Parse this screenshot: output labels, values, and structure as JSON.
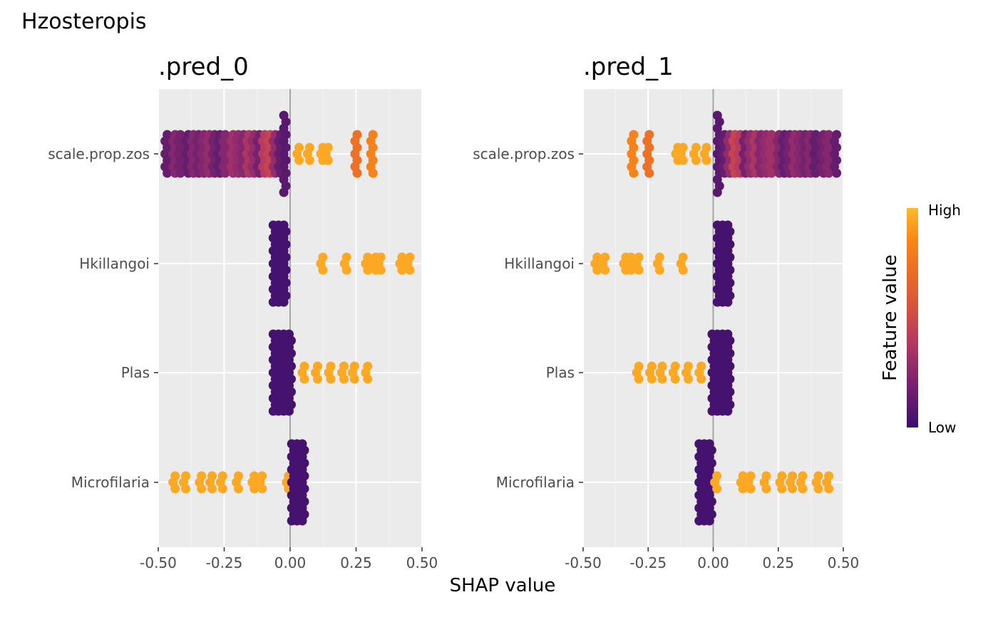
{
  "chart_data": {
    "type": "scatter",
    "subtype": "shap-beeswarm",
    "title": "Hzosteropis",
    "xlabel": "SHAP value",
    "xlim": [
      -0.5,
      0.5
    ],
    "x_ticks": [
      "-0.50",
      "-0.25",
      "0.00",
      "0.25",
      "0.50"
    ],
    "features": [
      "scale.prop.zos",
      "Hkillangoi",
      "Plas",
      "Microfilaria"
    ],
    "grid": true,
    "zero_line": true,
    "legend": {
      "title": "Feature value",
      "high_label": "High",
      "low_label": "Low",
      "position": "right",
      "colors": [
        "#fcb92b",
        "#f88517",
        "#e05a33",
        "#b83a5e",
        "#8e2a6e",
        "#5b1a6e",
        "#3b0f6f"
      ]
    },
    "panels": [
      {
        "title": ".pred_0",
        "features": [
          {
            "name": "scale.prop.zos",
            "points": [
              {
                "x": -0.47,
                "v": 0.2
              },
              {
                "x": -0.44,
                "v": 0.3
              },
              {
                "x": -0.42,
                "v": 0.25
              },
              {
                "x": -0.39,
                "v": 0.2
              },
              {
                "x": -0.37,
                "v": 0.3
              },
              {
                "x": -0.35,
                "v": 0.25
              },
              {
                "x": -0.33,
                "v": 0.3
              },
              {
                "x": -0.31,
                "v": 0.35
              },
              {
                "x": -0.29,
                "v": 0.25
              },
              {
                "x": -0.27,
                "v": 0.2
              },
              {
                "x": -0.25,
                "v": 0.3
              },
              {
                "x": -0.22,
                "v": 0.4
              },
              {
                "x": -0.2,
                "v": 0.35
              },
              {
                "x": -0.18,
                "v": 0.3
              },
              {
                "x": -0.16,
                "v": 0.45
              },
              {
                "x": -0.14,
                "v": 0.35
              },
              {
                "x": -0.12,
                "v": 0.25
              },
              {
                "x": -0.1,
                "v": 0.5
              },
              {
                "x": -0.08,
                "v": 0.55
              },
              {
                "x": -0.06,
                "v": 0.35
              },
              {
                "x": -0.04,
                "v": 0.2
              },
              {
                "x": -0.02,
                "v": 0.15
              },
              {
                "x": 0.03,
                "v": 0.95
              },
              {
                "x": 0.07,
                "v": 0.95
              },
              {
                "x": 0.12,
                "v": 0.95
              },
              {
                "x": 0.14,
                "v": 0.95
              },
              {
                "x": 0.25,
                "v": 0.75
              },
              {
                "x": 0.31,
                "v": 0.82
              }
            ]
          },
          {
            "name": "Hkillangoi",
            "points": [
              {
                "x": -0.06,
                "v": 0.05
              },
              {
                "x": -0.04,
                "v": 0.05
              },
              {
                "x": -0.02,
                "v": 0.05
              },
              {
                "x": 0.12,
                "v": 0.95
              },
              {
                "x": 0.21,
                "v": 0.95
              },
              {
                "x": 0.29,
                "v": 0.95
              },
              {
                "x": 0.32,
                "v": 0.95
              },
              {
                "x": 0.34,
                "v": 0.95
              },
              {
                "x": 0.42,
                "v": 0.95
              },
              {
                "x": 0.45,
                "v": 0.95
              }
            ]
          },
          {
            "name": "Plas",
            "points": [
              {
                "x": -0.06,
                "v": 0.05
              },
              {
                "x": -0.04,
                "v": 0.05
              },
              {
                "x": -0.02,
                "v": 0.05
              },
              {
                "x": 0.0,
                "v": 0.05
              },
              {
                "x": 0.05,
                "v": 0.95
              },
              {
                "x": 0.1,
                "v": 0.95
              },
              {
                "x": 0.15,
                "v": 0.95
              },
              {
                "x": 0.2,
                "v": 0.95
              },
              {
                "x": 0.24,
                "v": 0.95
              },
              {
                "x": 0.29,
                "v": 0.95
              }
            ]
          },
          {
            "name": "Microfilaria",
            "points": [
              {
                "x": -0.44,
                "v": 0.95
              },
              {
                "x": -0.4,
                "v": 0.95
              },
              {
                "x": -0.34,
                "v": 0.95
              },
              {
                "x": -0.3,
                "v": 0.95
              },
              {
                "x": -0.26,
                "v": 0.95
              },
              {
                "x": -0.2,
                "v": 0.95
              },
              {
                "x": -0.14,
                "v": 0.95
              },
              {
                "x": -0.11,
                "v": 0.95
              },
              {
                "x": -0.01,
                "v": 0.95
              },
              {
                "x": 0.01,
                "v": 0.05
              },
              {
                "x": 0.03,
                "v": 0.05
              },
              {
                "x": 0.05,
                "v": 0.05
              }
            ]
          }
        ]
      },
      {
        "title": ".pred_1",
        "features": [
          {
            "name": "scale.prop.zos",
            "points": [
              {
                "x": -0.31,
                "v": 0.82
              },
              {
                "x": -0.25,
                "v": 0.75
              },
              {
                "x": -0.14,
                "v": 0.95
              },
              {
                "x": -0.12,
                "v": 0.95
              },
              {
                "x": -0.07,
                "v": 0.95
              },
              {
                "x": -0.03,
                "v": 0.95
              },
              {
                "x": 0.02,
                "v": 0.15
              },
              {
                "x": 0.04,
                "v": 0.2
              },
              {
                "x": 0.06,
                "v": 0.35
              },
              {
                "x": 0.08,
                "v": 0.55
              },
              {
                "x": 0.1,
                "v": 0.5
              },
              {
                "x": 0.12,
                "v": 0.25
              },
              {
                "x": 0.14,
                "v": 0.35
              },
              {
                "x": 0.16,
                "v": 0.45
              },
              {
                "x": 0.18,
                "v": 0.3
              },
              {
                "x": 0.2,
                "v": 0.35
              },
              {
                "x": 0.22,
                "v": 0.4
              },
              {
                "x": 0.25,
                "v": 0.3
              },
              {
                "x": 0.27,
                "v": 0.2
              },
              {
                "x": 0.29,
                "v": 0.25
              },
              {
                "x": 0.31,
                "v": 0.35
              },
              {
                "x": 0.33,
                "v": 0.3
              },
              {
                "x": 0.35,
                "v": 0.25
              },
              {
                "x": 0.37,
                "v": 0.3
              },
              {
                "x": 0.39,
                "v": 0.2
              },
              {
                "x": 0.42,
                "v": 0.25
              },
              {
                "x": 0.44,
                "v": 0.3
              },
              {
                "x": 0.47,
                "v": 0.2
              }
            ]
          },
          {
            "name": "Hkillangoi",
            "points": [
              {
                "x": -0.45,
                "v": 0.95
              },
              {
                "x": -0.42,
                "v": 0.95
              },
              {
                "x": -0.34,
                "v": 0.95
              },
              {
                "x": -0.32,
                "v": 0.95
              },
              {
                "x": -0.29,
                "v": 0.95
              },
              {
                "x": -0.21,
                "v": 0.95
              },
              {
                "x": -0.12,
                "v": 0.95
              },
              {
                "x": 0.02,
                "v": 0.05
              },
              {
                "x": 0.04,
                "v": 0.05
              },
              {
                "x": 0.06,
                "v": 0.05
              }
            ]
          },
          {
            "name": "Plas",
            "points": [
              {
                "x": -0.29,
                "v": 0.95
              },
              {
                "x": -0.24,
                "v": 0.95
              },
              {
                "x": -0.2,
                "v": 0.95
              },
              {
                "x": -0.15,
                "v": 0.95
              },
              {
                "x": -0.1,
                "v": 0.95
              },
              {
                "x": -0.05,
                "v": 0.95
              },
              {
                "x": 0.0,
                "v": 0.05
              },
              {
                "x": 0.02,
                "v": 0.05
              },
              {
                "x": 0.04,
                "v": 0.05
              },
              {
                "x": 0.06,
                "v": 0.05
              }
            ]
          },
          {
            "name": "Microfilaria",
            "points": [
              {
                "x": -0.05,
                "v": 0.05
              },
              {
                "x": -0.03,
                "v": 0.05
              },
              {
                "x": -0.01,
                "v": 0.05
              },
              {
                "x": 0.01,
                "v": 0.95
              },
              {
                "x": 0.11,
                "v": 0.95
              },
              {
                "x": 0.14,
                "v": 0.95
              },
              {
                "x": 0.2,
                "v": 0.95
              },
              {
                "x": 0.26,
                "v": 0.95
              },
              {
                "x": 0.3,
                "v": 0.95
              },
              {
                "x": 0.34,
                "v": 0.95
              },
              {
                "x": 0.4,
                "v": 0.95
              },
              {
                "x": 0.44,
                "v": 0.95
              }
            ]
          }
        ]
      }
    ]
  }
}
